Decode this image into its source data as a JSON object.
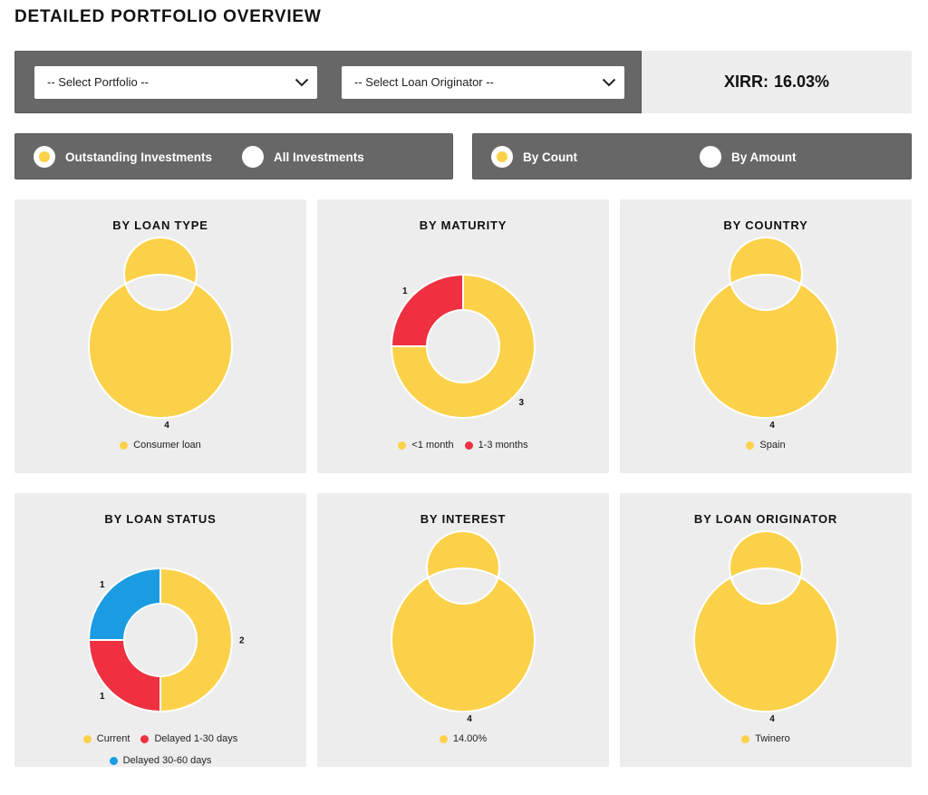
{
  "page": {
    "title": "DETAILED PORTFOLIO OVERVIEW"
  },
  "filters": {
    "portfolio_select": {
      "value": "-- Select Portfolio --"
    },
    "originator_select": {
      "value": "-- Select Loan Originator --"
    },
    "xirr": {
      "label": "XIRR:",
      "value": "16.03%"
    }
  },
  "investment_scope": {
    "options": [
      {
        "label": "Outstanding Investments",
        "checked": true
      },
      {
        "label": "All Investments",
        "checked": false
      }
    ]
  },
  "measure": {
    "options": [
      {
        "label": "By Count",
        "checked": true
      },
      {
        "label": "By Amount",
        "checked": false
      }
    ]
  },
  "colors": {
    "yellow": "#fcd14a",
    "red": "#ee3040",
    "blue": "#1b9ce2"
  },
  "chart_data": [
    {
      "type": "pie",
      "title": "BY LOAN TYPE",
      "slices": [
        {
          "label": "Consumer loan",
          "value": 4,
          "display": "4",
          "color": "#fcd14a"
        }
      ]
    },
    {
      "type": "pie",
      "title": "BY MATURITY",
      "slices": [
        {
          "label": "<1 month",
          "value": 3,
          "display": "3",
          "color": "#fcd14a"
        },
        {
          "label": "1-3 months",
          "value": 1,
          "display": "1",
          "color": "#ee3040"
        }
      ]
    },
    {
      "type": "pie",
      "title": "BY COUNTRY",
      "slices": [
        {
          "label": "Spain",
          "value": 4,
          "display": "4",
          "color": "#fcd14a"
        }
      ]
    },
    {
      "type": "pie",
      "title": "BY LOAN STATUS",
      "slices": [
        {
          "label": "Current",
          "value": 2,
          "display": "2",
          "color": "#fcd14a"
        },
        {
          "label": "Delayed 1-30 days",
          "value": 1,
          "display": "1",
          "color": "#ee3040"
        },
        {
          "label": "Delayed 30-60 days",
          "value": 1,
          "display": "1",
          "color": "#1b9ce2"
        }
      ]
    },
    {
      "type": "pie",
      "title": "BY INTEREST",
      "slices": [
        {
          "label": "14.00%",
          "value": 4,
          "display": "4",
          "color": "#fcd14a"
        }
      ]
    },
    {
      "type": "pie",
      "title": "BY LOAN ORIGINATOR",
      "slices": [
        {
          "label": "Twinero",
          "value": 4,
          "display": "4",
          "color": "#fcd14a"
        }
      ]
    }
  ]
}
